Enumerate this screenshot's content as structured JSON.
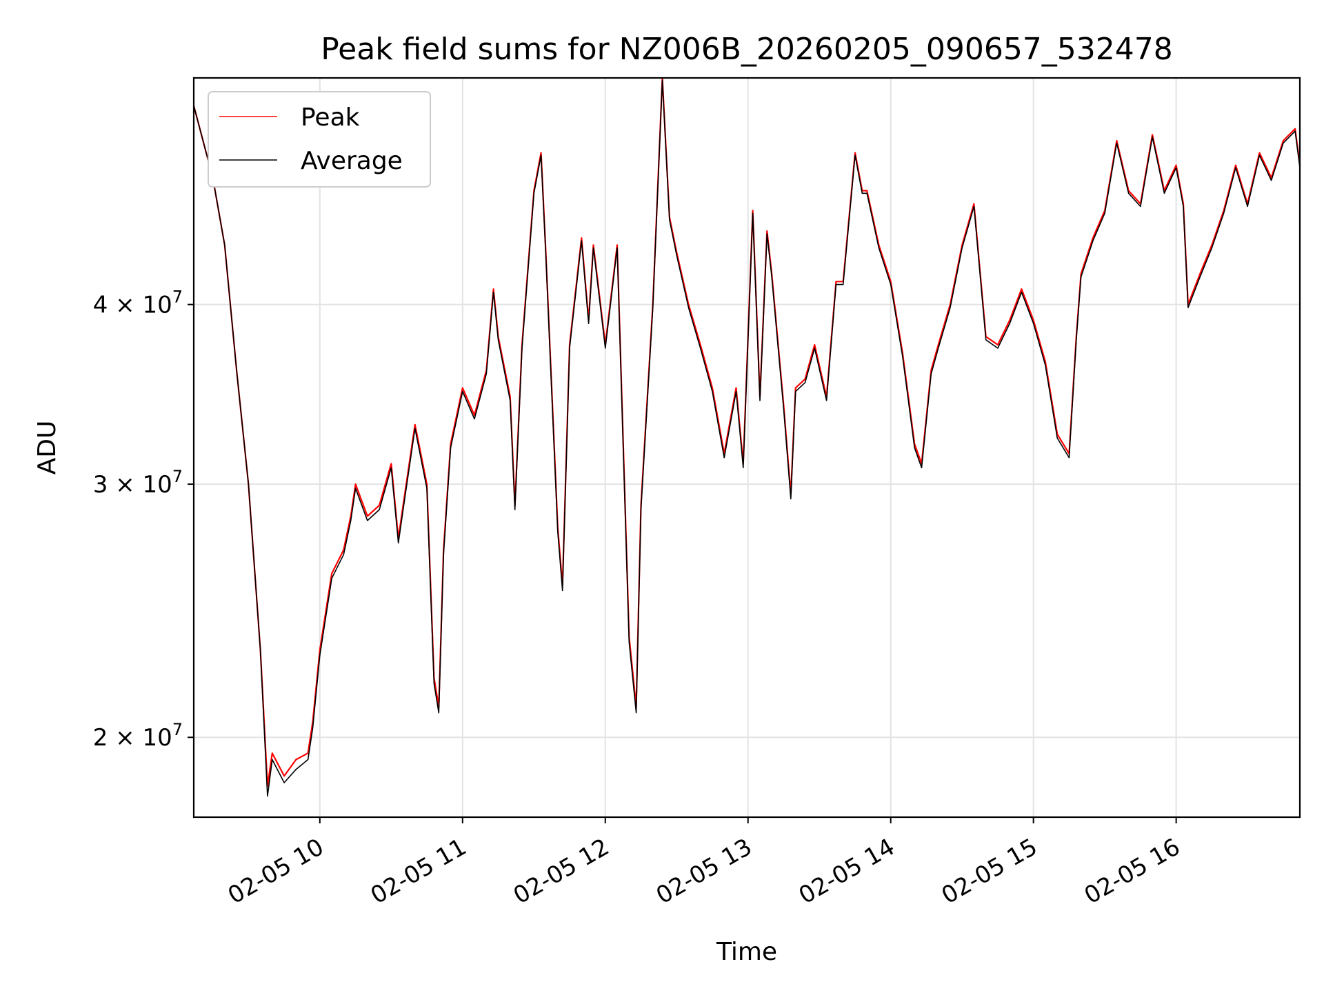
{
  "chart_data": {
    "type": "line",
    "title": "Peak field sums for NZ006B_20260205_090657_532478",
    "xlabel": "Time",
    "ylabel": "ADU",
    "yscale": "log",
    "xlim": [
      "02-05 09:07",
      "02-05 16:52"
    ],
    "ylim": [
      17600000,
      57500000
    ],
    "grid": true,
    "legend_position": "top-left",
    "x_ticks": [
      {
        "value": "02-05 10:00",
        "label": "02-05 10"
      },
      {
        "value": "02-05 11:00",
        "label": "02-05 11"
      },
      {
        "value": "02-05 12:00",
        "label": "02-05 12"
      },
      {
        "value": "02-05 13:00",
        "label": "02-05 13"
      },
      {
        "value": "02-05 14:00",
        "label": "02-05 14"
      },
      {
        "value": "02-05 15:00",
        "label": "02-05 15"
      },
      {
        "value": "02-05 16:00",
        "label": "02-05 16"
      }
    ],
    "y_ticks": [
      {
        "value": 20000000,
        "mantissa": "2",
        "base": "10",
        "exponent": "7"
      },
      {
        "value": 30000000,
        "mantissa": "3",
        "base": "10",
        "exponent": "7"
      },
      {
        "value": 40000000,
        "mantissa": "4",
        "base": "10",
        "exponent": "7"
      }
    ],
    "x": [
      "02-05 09:07",
      "02-05 09:15",
      "02-05 09:20",
      "02-05 09:25",
      "02-05 09:30",
      "02-05 09:35",
      "02-05 09:38",
      "02-05 09:40",
      "02-05 09:45",
      "02-05 09:50",
      "02-05 09:55",
      "02-05 09:57",
      "02-05 10:00",
      "02-05 10:05",
      "02-05 10:10",
      "02-05 10:13",
      "02-05 10:15",
      "02-05 10:20",
      "02-05 10:25",
      "02-05 10:30",
      "02-05 10:33",
      "02-05 10:35",
      "02-05 10:40",
      "02-05 10:45",
      "02-05 10:48",
      "02-05 10:50",
      "02-05 10:52",
      "02-05 10:55",
      "02-05 11:00",
      "02-05 11:05",
      "02-05 11:10",
      "02-05 11:13",
      "02-05 11:15",
      "02-05 11:20",
      "02-05 11:22",
      "02-05 11:25",
      "02-05 11:30",
      "02-05 11:33",
      "02-05 11:35",
      "02-05 11:40",
      "02-05 11:42",
      "02-05 11:45",
      "02-05 11:50",
      "02-05 11:53",
      "02-05 11:55",
      "02-05 12:00",
      "02-05 12:05",
      "02-05 12:10",
      "02-05 12:13",
      "02-05 12:15",
      "02-05 12:20",
      "02-05 12:24",
      "02-05 12:27",
      "02-05 12:30",
      "02-05 12:35",
      "02-05 12:40",
      "02-05 12:45",
      "02-05 12:50",
      "02-05 12:55",
      "02-05 12:58",
      "02-05 13:02",
      "02-05 13:05",
      "02-05 13:08",
      "02-05 13:10",
      "02-05 13:15",
      "02-05 13:18",
      "02-05 13:20",
      "02-05 13:24",
      "02-05 13:28",
      "02-05 13:33",
      "02-05 13:37",
      "02-05 13:40",
      "02-05 13:45",
      "02-05 13:48",
      "02-05 13:50",
      "02-05 13:55",
      "02-05 14:00",
      "02-05 14:05",
      "02-05 14:10",
      "02-05 14:13",
      "02-05 14:17",
      "02-05 14:20",
      "02-05 14:25",
      "02-05 14:30",
      "02-05 14:35",
      "02-05 14:40",
      "02-05 14:45",
      "02-05 14:50",
      "02-05 14:55",
      "02-05 15:00",
      "02-05 15:05",
      "02-05 15:10",
      "02-05 15:15",
      "02-05 15:18",
      "02-05 15:20",
      "02-05 15:25",
      "02-05 15:30",
      "02-05 15:35",
      "02-05 15:40",
      "02-05 15:45",
      "02-05 15:50",
      "02-05 15:55",
      "02-05 16:00",
      "02-05 16:03",
      "02-05 16:05",
      "02-05 16:10",
      "02-05 16:15",
      "02-05 16:20",
      "02-05 16:25",
      "02-05 16:30",
      "02-05 16:35",
      "02-05 16:40",
      "02-05 16:45",
      "02-05 16:50",
      "02-05 16:52"
    ],
    "series": [
      {
        "name": "Peak",
        "color": "#ff0000",
        "values": [
          55000000,
          49000000,
          44000000,
          36000000,
          30000000,
          23000000,
          18500000,
          19500000,
          18800000,
          19300000,
          19500000,
          20500000,
          23000000,
          26000000,
          27000000,
          28500000,
          30000000,
          28500000,
          29000000,
          31000000,
          27500000,
          29000000,
          33000000,
          30000000,
          22000000,
          21000000,
          27000000,
          32000000,
          35000000,
          33500000,
          36000000,
          41000000,
          38000000,
          34500000,
          29000000,
          37500000,
          48000000,
          51000000,
          43500000,
          28000000,
          25500000,
          37500000,
          44500000,
          39000000,
          44000000,
          37500000,
          44000000,
          23500000,
          21000000,
          29000000,
          40000000,
          57500000,
          46000000,
          43500000,
          40000000,
          37500000,
          35000000,
          31500000,
          35000000,
          31000000,
          46500000,
          34500000,
          45000000,
          42000000,
          34000000,
          29500000,
          35000000,
          35500000,
          37500000,
          34500000,
          41500000,
          41500000,
          51000000,
          48000000,
          48000000,
          44000000,
          41500000,
          37000000,
          32000000,
          31000000,
          36000000,
          37500000,
          40000000,
          44000000,
          47000000,
          38000000,
          37500000,
          39000000,
          41000000,
          39000000,
          36500000,
          32500000,
          31500000,
          38000000,
          42000000,
          44500000,
          46500000,
          52000000,
          48000000,
          47000000,
          52500000,
          48000000,
          50000000,
          47000000,
          40000000,
          42000000,
          44000000,
          46500000,
          50000000,
          47000000,
          51000000,
          49000000,
          52000000,
          53000000,
          50000000
        ]
      },
      {
        "name": "Average",
        "color": "#000000",
        "values": [
          55000000,
          49000000,
          44000000,
          36000000,
          30000000,
          23000000,
          18200000,
          19300000,
          18600000,
          19000000,
          19300000,
          20300000,
          22800000,
          25800000,
          26800000,
          28300000,
          29800000,
          28300000,
          28800000,
          30800000,
          27300000,
          28800000,
          32800000,
          29800000,
          21800000,
          20800000,
          26800000,
          31800000,
          34800000,
          33300000,
          35800000,
          40800000,
          37800000,
          34300000,
          28800000,
          37300000,
          47800000,
          50800000,
          43300000,
          27800000,
          25300000,
          37300000,
          44300000,
          38800000,
          43800000,
          37300000,
          43800000,
          23300000,
          20800000,
          28800000,
          39800000,
          57300000,
          45800000,
          43300000,
          39800000,
          37300000,
          34800000,
          31300000,
          34800000,
          30800000,
          46300000,
          34300000,
          44800000,
          41800000,
          33800000,
          29300000,
          34800000,
          35300000,
          37300000,
          34300000,
          41300000,
          41300000,
          50800000,
          47800000,
          47800000,
          43800000,
          41300000,
          36800000,
          31800000,
          30800000,
          35800000,
          37300000,
          39800000,
          43800000,
          46800000,
          37800000,
          37300000,
          38800000,
          40800000,
          38800000,
          36300000,
          32300000,
          31300000,
          37800000,
          41800000,
          44300000,
          46300000,
          51800000,
          47800000,
          46800000,
          52300000,
          47800000,
          49800000,
          46800000,
          39800000,
          41800000,
          43800000,
          46300000,
          49800000,
          46800000,
          50800000,
          48800000,
          51800000,
          52800000,
          49800000
        ]
      }
    ]
  }
}
